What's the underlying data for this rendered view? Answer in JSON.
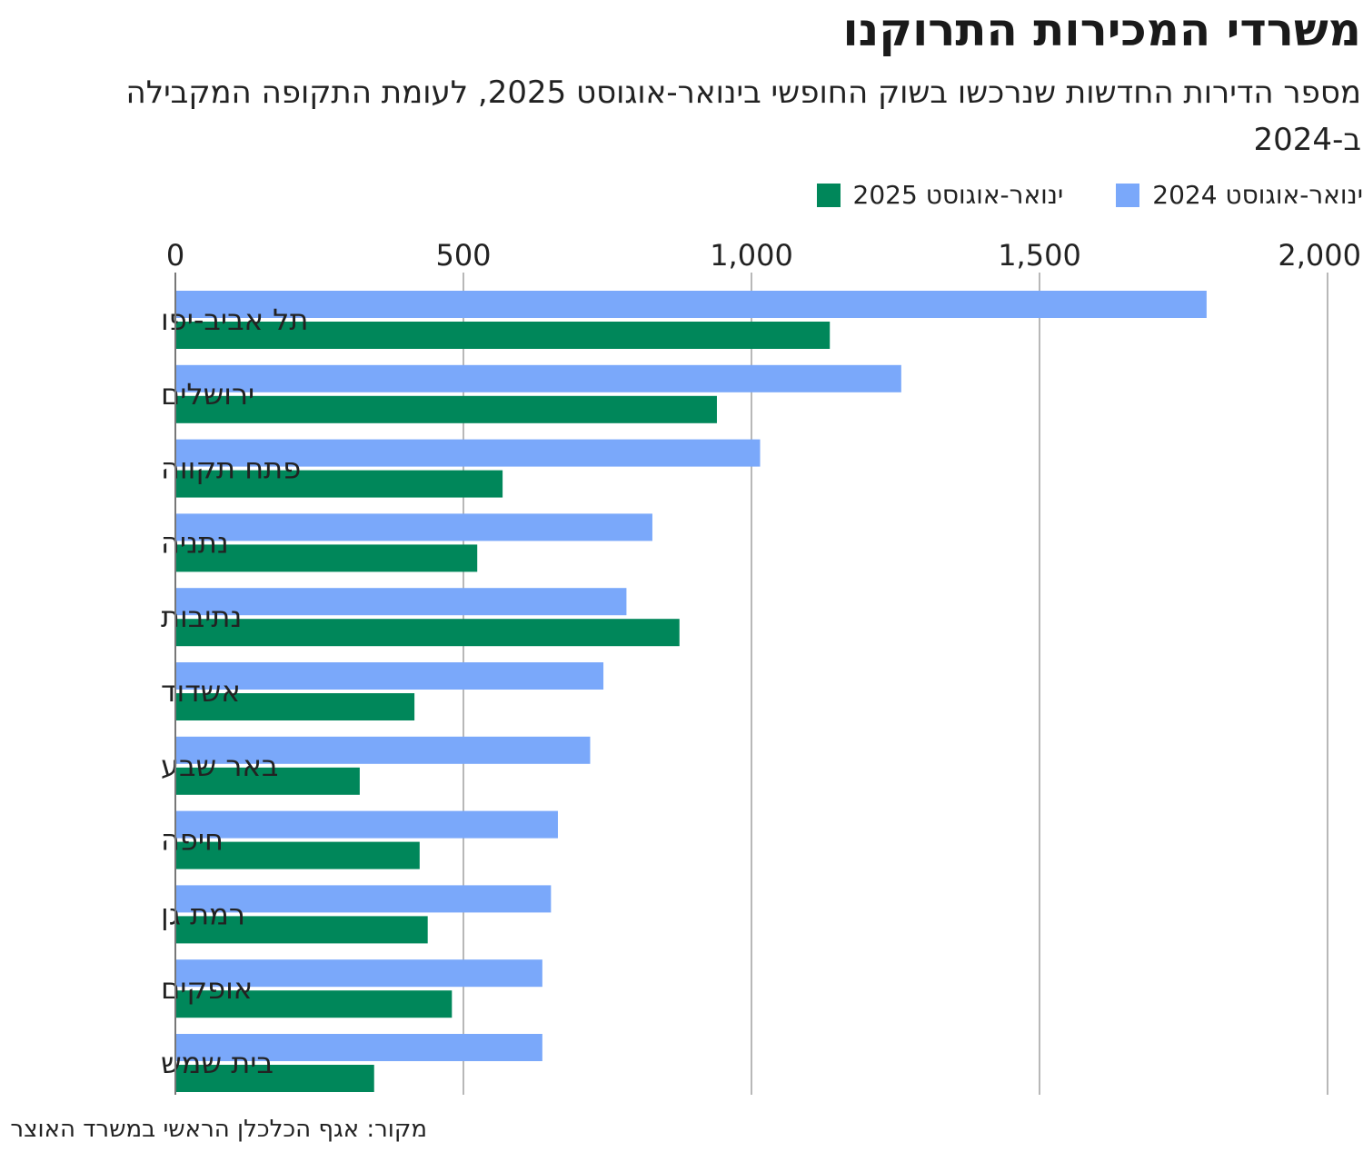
{
  "chart_data": {
    "type": "bar",
    "orientation": "horizontal",
    "title": "משרדי המכירות התרוקנו",
    "subtitle": "מספר הדירות החדשות שנרכשו בשוק החופשי בינואר-אוגוסט 2025, לעומת התקופה המקבילה ב-2024",
    "categories": [
      "תל אביב-יפו",
      "ירושלים",
      "פתח תקווה",
      "נתניה",
      "נתיבות",
      "אשדוד",
      "באר שבע",
      "חיפה",
      "רמת גן",
      "אופקים",
      "בית שמש"
    ],
    "series": [
      {
        "name": "ינואר-אוגוסט 2024",
        "color": "#7aa8fa",
        "values": [
          1790,
          1260,
          1015,
          828,
          783,
          743,
          720,
          664,
          652,
          637,
          637
        ]
      },
      {
        "name": "ינואר-אוגוסט 2025",
        "color": "#00875a",
        "values": [
          1136,
          940,
          568,
          524,
          875,
          415,
          320,
          424,
          438,
          480,
          345
        ]
      }
    ],
    "xlim": [
      0,
      2000
    ],
    "xticks": [
      0,
      500,
      1000,
      1500,
      2000
    ],
    "xtick_labels": [
      "0",
      "500",
      "1,000",
      "1,500",
      "2,000"
    ],
    "grid": true,
    "legend_position": "top-right",
    "source": "מקור: אגף הכלכלן הראשי במשרד האוצר"
  }
}
